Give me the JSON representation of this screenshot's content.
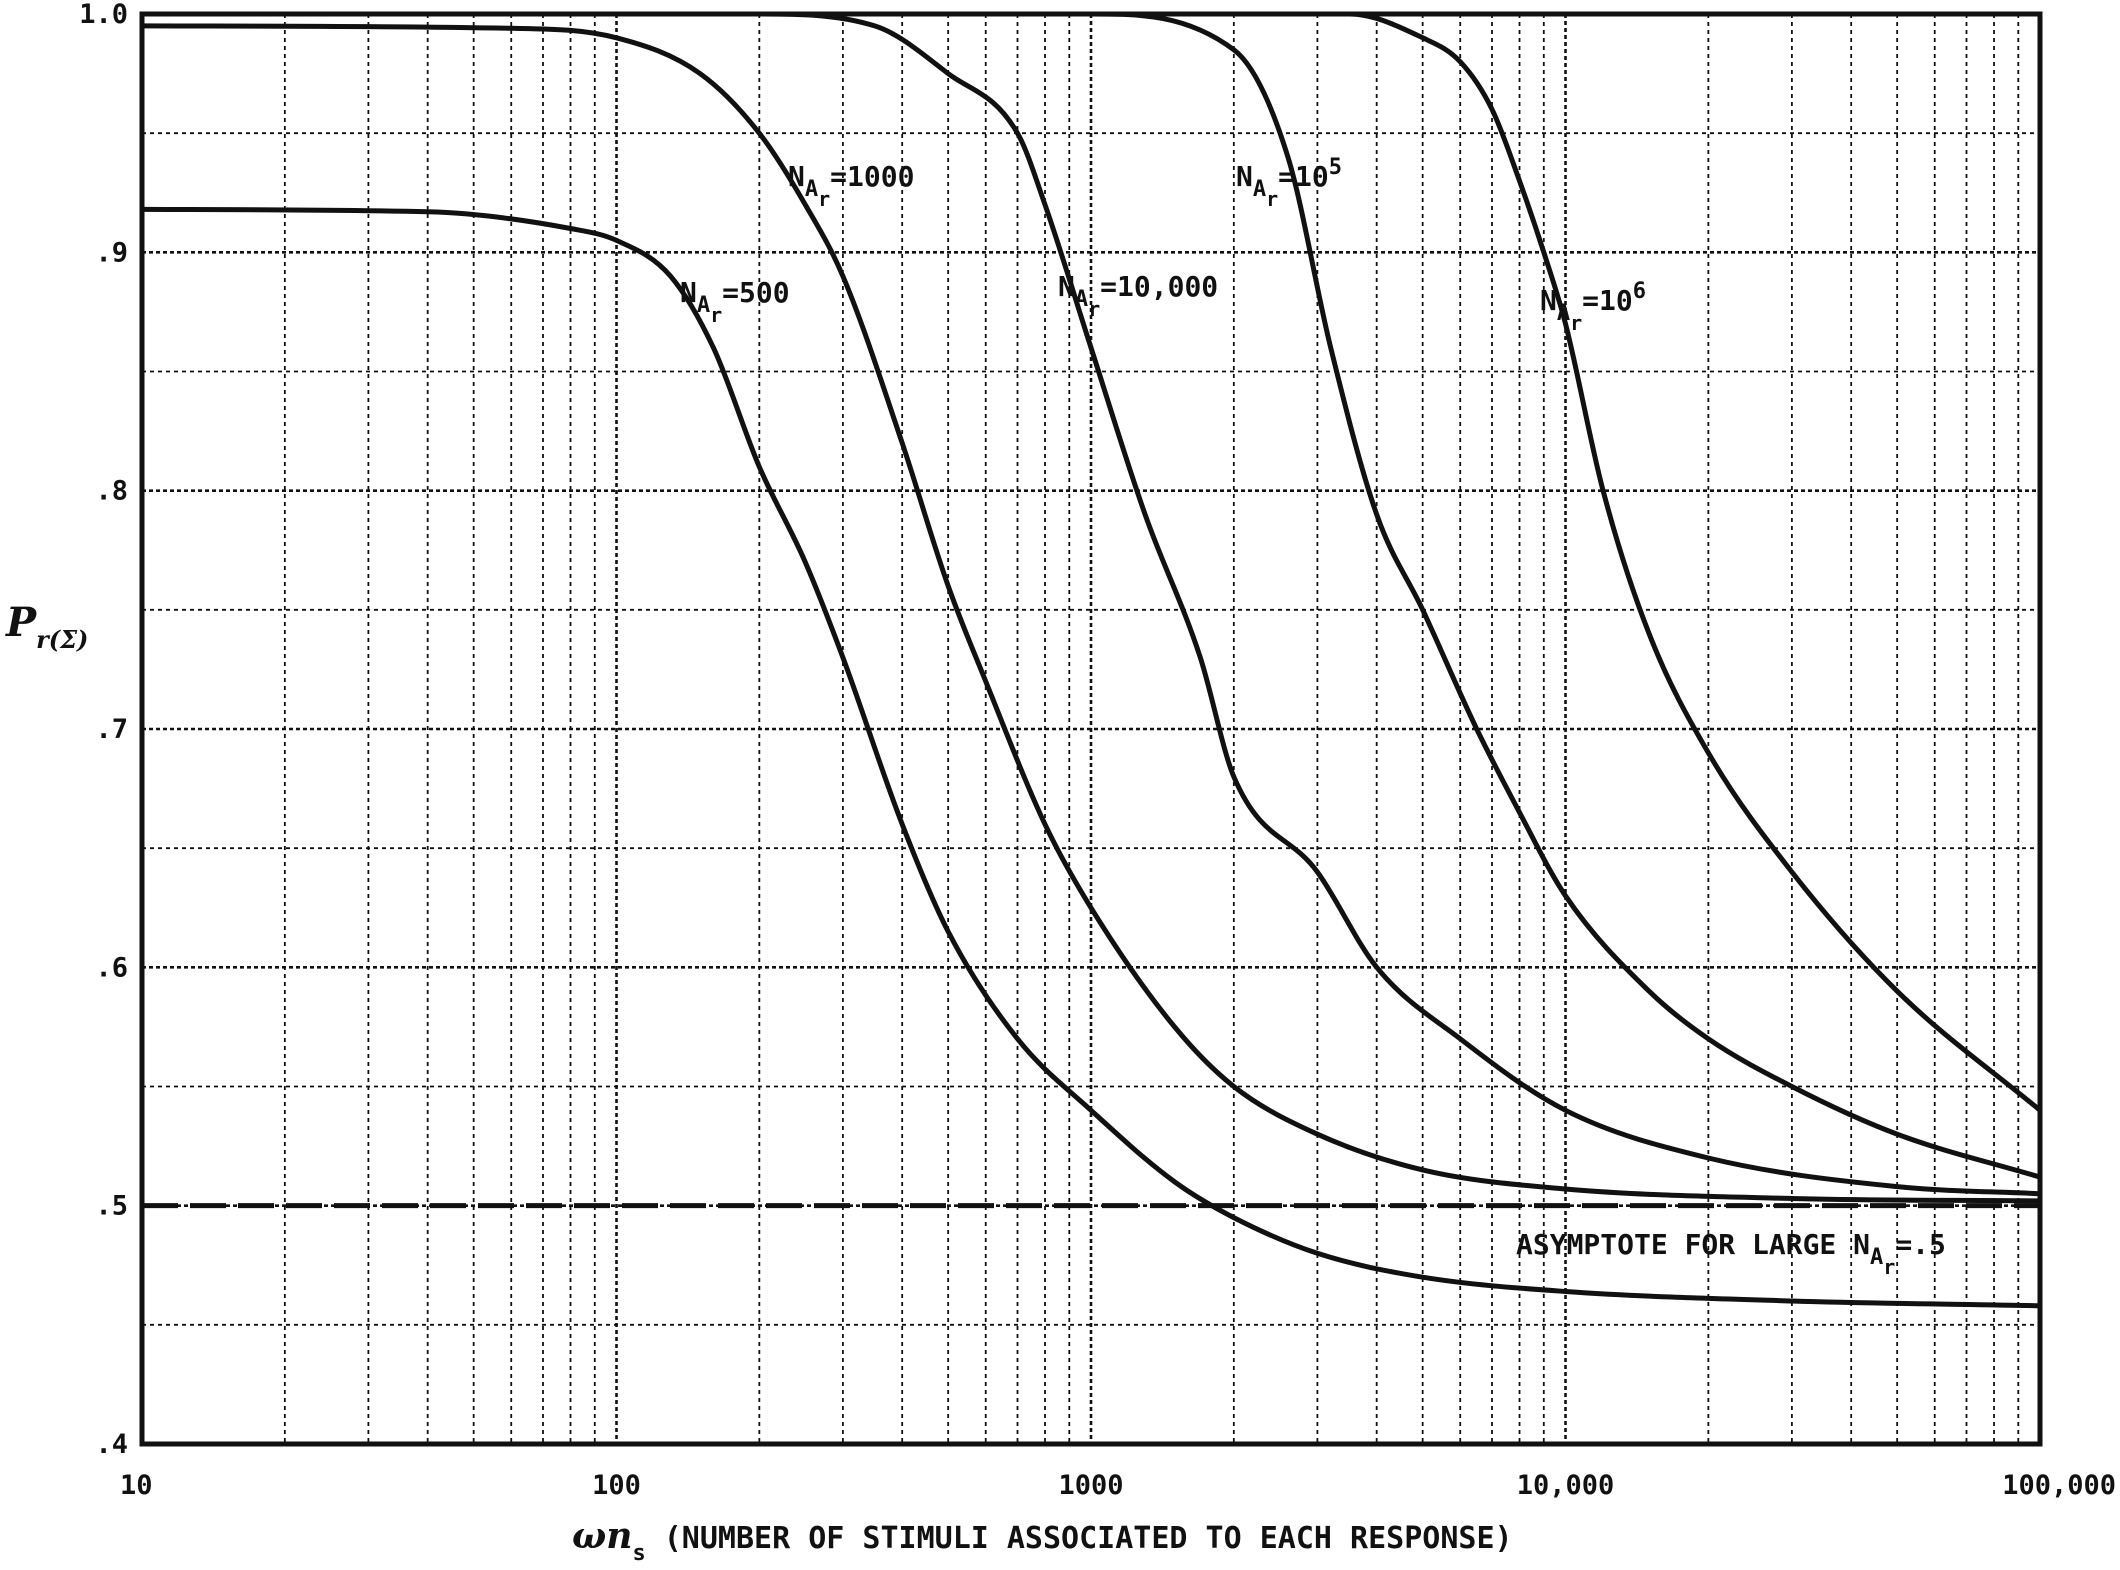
{
  "chart_data": {
    "type": "line",
    "title": "",
    "xlabel_symbol": "ωn",
    "xlabel_sub": "s",
    "xlabel_text": "(NUMBER OF STIMULI ASSOCIATED TO EACH RESPONSE)",
    "ylabel_symbol": "P",
    "ylabel_sub": "r(Σ)",
    "x_scale": "log",
    "xlim": [
      10,
      100000
    ],
    "ylim": [
      0.4,
      1.0
    ],
    "grid": true,
    "x_ticks": [
      {
        "value": 10,
        "label": "10"
      },
      {
        "value": 100,
        "label": "100"
      },
      {
        "value": 1000,
        "label": "1000"
      },
      {
        "value": 10000,
        "label": "10,000"
      },
      {
        "value": 100000,
        "label": "100,000"
      }
    ],
    "y_ticks": [
      {
        "value": 1.0,
        "label": "1.0"
      },
      {
        "value": 0.9,
        "label": ".9"
      },
      {
        "value": 0.8,
        "label": ".8"
      },
      {
        "value": 0.7,
        "label": ".7"
      },
      {
        "value": 0.6,
        "label": ".6"
      },
      {
        "value": 0.5,
        "label": ".5"
      },
      {
        "value": 0.4,
        "label": ".4"
      }
    ],
    "series": [
      {
        "name": "N_Ar=500",
        "label_main": "N",
        "label_sub": "A",
        "label_subsub": "r",
        "label_rest": "=500",
        "label_sup": "",
        "x": [
          10,
          40,
          80,
          100,
          130,
          160,
          200,
          250,
          300,
          400,
          500,
          700,
          1000,
          1500,
          2000,
          3000,
          5000,
          10000,
          30000,
          100000
        ],
        "y": [
          0.918,
          0.917,
          0.91,
          0.905,
          0.89,
          0.86,
          0.81,
          0.77,
          0.73,
          0.66,
          0.615,
          0.57,
          0.54,
          0.51,
          0.495,
          0.48,
          0.47,
          0.464,
          0.46,
          0.458
        ]
      },
      {
        "name": "N_Ar=1000",
        "label_main": "N",
        "label_sub": "A",
        "label_subsub": "r",
        "label_rest": "=1000",
        "label_sup": "",
        "x": [
          10,
          60,
          100,
          150,
          200,
          250,
          300,
          400,
          500,
          600,
          800,
          1000,
          1500,
          2000,
          3000,
          5000,
          10000,
          30000,
          100000
        ],
        "y": [
          0.995,
          0.994,
          0.99,
          0.975,
          0.95,
          0.92,
          0.89,
          0.82,
          0.76,
          0.72,
          0.66,
          0.625,
          0.575,
          0.55,
          0.53,
          0.515,
          0.507,
          0.503,
          0.502
        ]
      },
      {
        "name": "N_Ar=10,000",
        "label_main": "N",
        "label_sub": "A",
        "label_subsub": "r",
        "label_rest": "=10,000",
        "label_sup": "",
        "x": [
          10,
          200,
          350,
          500,
          700,
          800,
          1000,
          1300,
          1700,
          2000,
          3000,
          4000,
          6000,
          10000,
          20000,
          50000,
          100000
        ],
        "y": [
          1.0,
          1.0,
          0.995,
          0.975,
          0.95,
          0.92,
          0.86,
          0.79,
          0.73,
          0.68,
          0.64,
          0.6,
          0.57,
          0.54,
          0.52,
          0.508,
          0.505
        ]
      },
      {
        "name": "N_Ar=10^5",
        "label_main": "N",
        "label_sub": "A",
        "label_subsub": "r",
        "label_rest": "=10",
        "label_sup": "5",
        "x": [
          10,
          1000,
          2000,
          2600,
          3200,
          4000,
          5000,
          6500,
          8000,
          10000,
          15000,
          20000,
          30000,
          50000,
          100000
        ],
        "y": [
          1.0,
          1.0,
          0.985,
          0.94,
          0.86,
          0.79,
          0.75,
          0.7,
          0.665,
          0.63,
          0.59,
          0.57,
          0.55,
          0.53,
          0.512
        ]
      },
      {
        "name": "N_Ar=10^6",
        "label_main": "N",
        "label_sub": "A",
        "label_subsub": "r",
        "label_rest": "=10",
        "label_sup": "6",
        "x": [
          10,
          3500,
          5000,
          6000,
          7000,
          8000,
          9000,
          10000,
          12000,
          15000,
          20000,
          30000,
          50000,
          100000
        ],
        "y": [
          1.0,
          1.0,
          0.99,
          0.98,
          0.96,
          0.93,
          0.9,
          0.87,
          0.8,
          0.74,
          0.69,
          0.64,
          0.59,
          0.54
        ]
      }
    ],
    "asymptote": {
      "y": 0.5,
      "label_text": "ASYMPTOTE FOR LARGE N",
      "label_sub": "A",
      "label_subsub": "r",
      "label_rest": "=.5"
    }
  }
}
